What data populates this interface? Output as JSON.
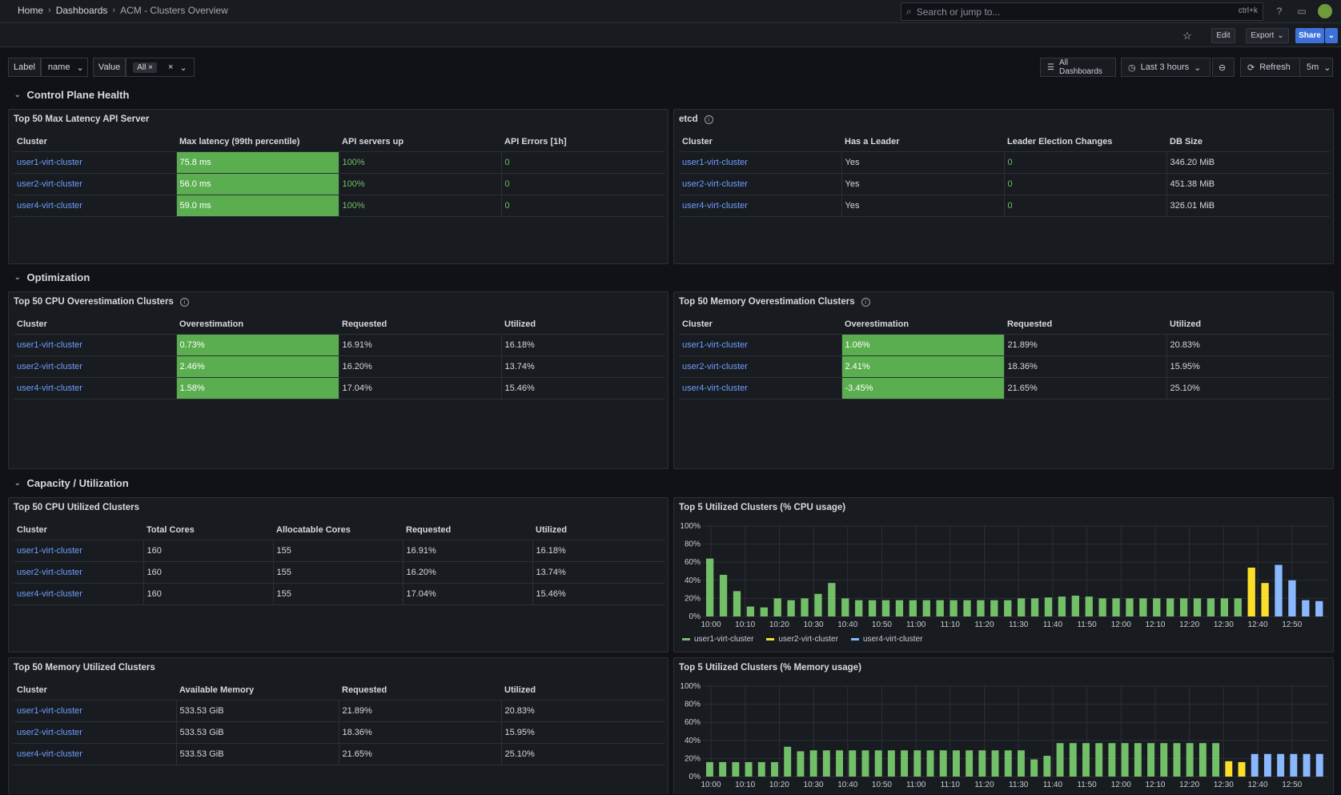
{
  "breadcrumb": {
    "home": "Home",
    "dashboards": "Dashboards",
    "current": "ACM - Clusters Overview"
  },
  "search": {
    "placeholder": "Search or jump to...",
    "shortcut": "ctrl+k"
  },
  "toolbar": {
    "edit": "Edit",
    "export": "Export",
    "share": "Share"
  },
  "variables": {
    "label_name": "Label",
    "label_value": "name",
    "value_name": "Value",
    "value_chip": "All"
  },
  "controls": {
    "all_dashboards": "All Dashboards",
    "time_range": "Last 3 hours",
    "refresh": "Refresh",
    "interval": "5m"
  },
  "rows": {
    "control_plane": "Control Plane Health",
    "optimization": "Optimization",
    "capacity": "Capacity / Utilization"
  },
  "panels": {
    "latency": {
      "title": "Top 50 Max Latency API Server",
      "headers": [
        "Cluster",
        "Max latency (99th percentile)",
        "API servers up",
        "API Errors [1h]"
      ],
      "rows": [
        [
          "user1-virt-cluster",
          "75.8 ms",
          "100%",
          "0"
        ],
        [
          "user2-virt-cluster",
          "56.0 ms",
          "100%",
          "0"
        ],
        [
          "user4-virt-cluster",
          "59.0 ms",
          "100%",
          "0"
        ]
      ]
    },
    "etcd": {
      "title": "etcd",
      "headers": [
        "Cluster",
        "Has a Leader",
        "Leader Election Changes",
        "DB Size"
      ],
      "rows": [
        [
          "user1-virt-cluster",
          "Yes",
          "0",
          "346.20 MiB"
        ],
        [
          "user2-virt-cluster",
          "Yes",
          "0",
          "451.38 MiB"
        ],
        [
          "user4-virt-cluster",
          "Yes",
          "0",
          "326.01 MiB"
        ]
      ]
    },
    "cpu_over": {
      "title": "Top 50 CPU Overestimation Clusters",
      "headers": [
        "Cluster",
        "Overestimation",
        "Requested",
        "Utilized"
      ],
      "rows": [
        [
          "user1-virt-cluster",
          "0.73%",
          "16.91%",
          "16.18%"
        ],
        [
          "user2-virt-cluster",
          "2.46%",
          "16.20%",
          "13.74%"
        ],
        [
          "user4-virt-cluster",
          "1.58%",
          "17.04%",
          "15.46%"
        ]
      ]
    },
    "mem_over": {
      "title": "Top 50 Memory Overestimation Clusters",
      "headers": [
        "Cluster",
        "Overestimation",
        "Requested",
        "Utilized"
      ],
      "rows": [
        [
          "user1-virt-cluster",
          "1.06%",
          "21.89%",
          "20.83%"
        ],
        [
          "user2-virt-cluster",
          "2.41%",
          "18.36%",
          "15.95%"
        ],
        [
          "user4-virt-cluster",
          "-3.45%",
          "21.65%",
          "25.10%"
        ]
      ]
    },
    "cpu_util": {
      "title": "Top 50 CPU Utilized Clusters",
      "headers": [
        "Cluster",
        "Total Cores",
        "Allocatable Cores",
        "Requested",
        "Utilized"
      ],
      "rows": [
        [
          "user1-virt-cluster",
          "160",
          "155",
          "16.91%",
          "16.18%"
        ],
        [
          "user2-virt-cluster",
          "160",
          "155",
          "16.20%",
          "13.74%"
        ],
        [
          "user4-virt-cluster",
          "160",
          "155",
          "17.04%",
          "15.46%"
        ]
      ]
    },
    "mem_util": {
      "title": "Top 50 Memory Utilized Clusters",
      "headers": [
        "Cluster",
        "Available Memory",
        "Requested",
        "Utilized"
      ],
      "rows": [
        [
          "user1-virt-cluster",
          "533.53 GiB",
          "21.89%",
          "20.83%"
        ],
        [
          "user2-virt-cluster",
          "533.53 GiB",
          "18.36%",
          "15.95%"
        ],
        [
          "user4-virt-cluster",
          "533.53 GiB",
          "21.65%",
          "25.10%"
        ]
      ]
    },
    "cpu_chart": {
      "title": "Top 5 Utilized Clusters (% CPU usage)"
    },
    "mem_chart": {
      "title": "Top 5 Utilized Clusters (% Memory usage)"
    }
  },
  "colors": {
    "user1": "#73bf69",
    "user2": "#fade2a",
    "user4": "#8ab8ff"
  },
  "chart_data": [
    {
      "type": "bar",
      "title": "Top 5 Utilized Clusters (% CPU usage)",
      "ylim": [
        0,
        100
      ],
      "yticks": [
        "0%",
        "20%",
        "40%",
        "60%",
        "80%",
        "100%"
      ],
      "xticks": [
        "10:00",
        "10:10",
        "10:20",
        "10:30",
        "10:40",
        "10:50",
        "11:00",
        "11:10",
        "11:20",
        "11:30",
        "11:40",
        "11:50",
        "12:00",
        "12:10",
        "12:20",
        "12:30",
        "12:40",
        "12:50"
      ],
      "legend": [
        "user1-virt-cluster",
        "user2-virt-cluster",
        "user4-virt-cluster"
      ],
      "bars": [
        {
          "c": "user1",
          "v": 64
        },
        {
          "c": "user1",
          "v": 46
        },
        {
          "c": "user1",
          "v": 28
        },
        {
          "c": "user1",
          "v": 11
        },
        {
          "c": "user1",
          "v": 10
        },
        {
          "c": "user1",
          "v": 20
        },
        {
          "c": "user1",
          "v": 18
        },
        {
          "c": "user1",
          "v": 20
        },
        {
          "c": "user1",
          "v": 25
        },
        {
          "c": "user1",
          "v": 37
        },
        {
          "c": "user1",
          "v": 20
        },
        {
          "c": "user1",
          "v": 18
        },
        {
          "c": "user1",
          "v": 18
        },
        {
          "c": "user1",
          "v": 18
        },
        {
          "c": "user1",
          "v": 18
        },
        {
          "c": "user1",
          "v": 18
        },
        {
          "c": "user1",
          "v": 18
        },
        {
          "c": "user1",
          "v": 18
        },
        {
          "c": "user1",
          "v": 18
        },
        {
          "c": "user1",
          "v": 18
        },
        {
          "c": "user1",
          "v": 18
        },
        {
          "c": "user1",
          "v": 18
        },
        {
          "c": "user1",
          "v": 18
        },
        {
          "c": "user1",
          "v": 20
        },
        {
          "c": "user1",
          "v": 20
        },
        {
          "c": "user1",
          "v": 21
        },
        {
          "c": "user1",
          "v": 22
        },
        {
          "c": "user1",
          "v": 23
        },
        {
          "c": "user1",
          "v": 22
        },
        {
          "c": "user1",
          "v": 20
        },
        {
          "c": "user1",
          "v": 20
        },
        {
          "c": "user1",
          "v": 20
        },
        {
          "c": "user1",
          "v": 20
        },
        {
          "c": "user1",
          "v": 20
        },
        {
          "c": "user1",
          "v": 20
        },
        {
          "c": "user1",
          "v": 20
        },
        {
          "c": "user1",
          "v": 20
        },
        {
          "c": "user1",
          "v": 20
        },
        {
          "c": "user1",
          "v": 20
        },
        {
          "c": "user1",
          "v": 20
        },
        {
          "c": "user2",
          "v": 54
        },
        {
          "c": "user2",
          "v": 37
        },
        {
          "c": "user4",
          "v": 57
        },
        {
          "c": "user4",
          "v": 40
        },
        {
          "c": "user4",
          "v": 18
        },
        {
          "c": "user4",
          "v": 17
        }
      ]
    },
    {
      "type": "bar",
      "title": "Top 5 Utilized Clusters (% Memory usage)",
      "ylim": [
        0,
        100
      ],
      "yticks": [
        "0%",
        "20%",
        "40%",
        "60%",
        "80%",
        "100%"
      ],
      "xticks": [
        "10:00",
        "10:10",
        "10:20",
        "10:30",
        "10:40",
        "10:50",
        "11:00",
        "11:10",
        "11:20",
        "11:30",
        "11:40",
        "11:50",
        "12:00",
        "12:10",
        "12:20",
        "12:30",
        "12:40",
        "12:50"
      ],
      "bars": [
        {
          "c": "user1",
          "v": 16
        },
        {
          "c": "user1",
          "v": 16
        },
        {
          "c": "user1",
          "v": 16
        },
        {
          "c": "user1",
          "v": 16
        },
        {
          "c": "user1",
          "v": 16
        },
        {
          "c": "user1",
          "v": 16
        },
        {
          "c": "user1",
          "v": 33
        },
        {
          "c": "user1",
          "v": 28
        },
        {
          "c": "user1",
          "v": 29
        },
        {
          "c": "user1",
          "v": 29
        },
        {
          "c": "user1",
          "v": 29
        },
        {
          "c": "user1",
          "v": 29
        },
        {
          "c": "user1",
          "v": 29
        },
        {
          "c": "user1",
          "v": 29
        },
        {
          "c": "user1",
          "v": 29
        },
        {
          "c": "user1",
          "v": 29
        },
        {
          "c": "user1",
          "v": 29
        },
        {
          "c": "user1",
          "v": 29
        },
        {
          "c": "user1",
          "v": 29
        },
        {
          "c": "user1",
          "v": 29
        },
        {
          "c": "user1",
          "v": 29
        },
        {
          "c": "user1",
          "v": 29
        },
        {
          "c": "user1",
          "v": 29
        },
        {
          "c": "user1",
          "v": 29
        },
        {
          "c": "user1",
          "v": 29
        },
        {
          "c": "user1",
          "v": 19
        },
        {
          "c": "user1",
          "v": 23
        },
        {
          "c": "user1",
          "v": 37
        },
        {
          "c": "user1",
          "v": 37
        },
        {
          "c": "user1",
          "v": 37
        },
        {
          "c": "user1",
          "v": 37
        },
        {
          "c": "user1",
          "v": 37
        },
        {
          "c": "user1",
          "v": 37
        },
        {
          "c": "user1",
          "v": 37
        },
        {
          "c": "user1",
          "v": 37
        },
        {
          "c": "user1",
          "v": 37
        },
        {
          "c": "user1",
          "v": 37
        },
        {
          "c": "user1",
          "v": 37
        },
        {
          "c": "user1",
          "v": 37
        },
        {
          "c": "user1",
          "v": 37
        },
        {
          "c": "user2",
          "v": 17
        },
        {
          "c": "user2",
          "v": 16
        },
        {
          "c": "user4",
          "v": 25
        },
        {
          "c": "user4",
          "v": 25
        },
        {
          "c": "user4",
          "v": 25
        },
        {
          "c": "user4",
          "v": 25
        },
        {
          "c": "user4",
          "v": 25
        },
        {
          "c": "user4",
          "v": 25
        }
      ]
    }
  ]
}
